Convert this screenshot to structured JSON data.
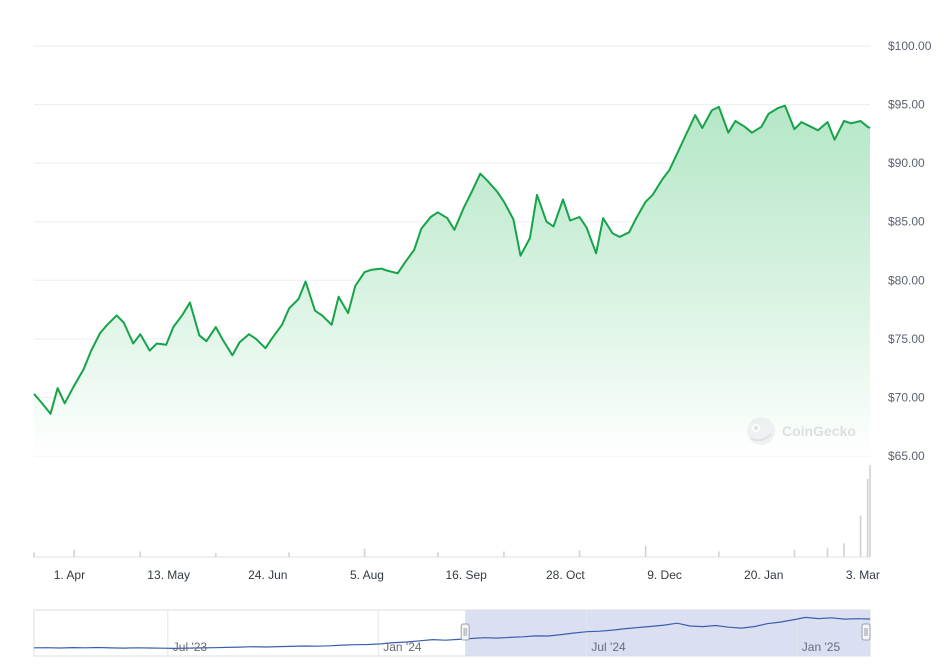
{
  "watermark": "CoinGecko",
  "colors": {
    "line": "#16a34a",
    "fill_top": "#a8e3bd",
    "grid": "#ebedf0",
    "volume": "#cfd3d8",
    "navigator_line": "#3b5fb0",
    "navigator_selection": "#d6dcef"
  },
  "chart_data": {
    "type": "area",
    "y_axis": {
      "ticks": [
        "$100.00",
        "$95.00",
        "$90.00",
        "$85.00",
        "$80.00",
        "$75.00",
        "$70.00",
        "$65.00"
      ],
      "tick_values": [
        100,
        95,
        90,
        85,
        80,
        75,
        70,
        65
      ],
      "range": [
        65,
        100
      ],
      "side": "right"
    },
    "x_axis": {
      "ticks": [
        "1. Apr",
        "13. May",
        "24. Jun",
        "5. Aug",
        "16. Sep",
        "28. Oct",
        "9. Dec",
        "20. Jan",
        "3. Mar"
      ],
      "tick_dates": [
        "2024-04-01",
        "2024-05-13",
        "2024-06-24",
        "2024-08-05",
        "2024-09-16",
        "2024-10-28",
        "2024-12-09",
        "2025-01-20",
        "2025-03-03"
      ]
    },
    "grid": true,
    "legend": "none",
    "series": [
      {
        "dates": [
          "2024-03-17",
          "2024-03-20",
          "2024-03-24",
          "2024-03-27",
          "2024-03-30",
          "2024-04-03",
          "2024-04-07",
          "2024-04-10",
          "2024-04-14",
          "2024-04-17",
          "2024-04-21",
          "2024-04-24",
          "2024-04-28",
          "2024-05-01",
          "2024-05-05",
          "2024-05-08",
          "2024-05-12",
          "2024-05-15",
          "2024-05-19",
          "2024-05-22",
          "2024-05-26",
          "2024-05-29",
          "2024-06-02",
          "2024-06-05",
          "2024-06-09",
          "2024-06-12",
          "2024-06-16",
          "2024-06-19",
          "2024-06-23",
          "2024-06-26",
          "2024-06-30",
          "2024-07-03",
          "2024-07-07",
          "2024-07-10",
          "2024-07-14",
          "2024-07-17",
          "2024-07-21",
          "2024-07-24",
          "2024-07-28",
          "2024-07-31",
          "2024-08-04",
          "2024-08-07",
          "2024-08-11",
          "2024-08-14",
          "2024-08-18",
          "2024-08-21",
          "2024-08-25",
          "2024-08-28",
          "2024-09-01",
          "2024-09-04",
          "2024-09-08",
          "2024-09-11",
          "2024-09-15",
          "2024-09-18",
          "2024-09-22",
          "2024-09-25",
          "2024-09-29",
          "2024-10-02",
          "2024-10-06",
          "2024-10-09",
          "2024-10-13",
          "2024-10-16",
          "2024-10-20",
          "2024-10-23",
          "2024-10-27",
          "2024-10-30",
          "2024-11-03",
          "2024-11-06",
          "2024-11-10",
          "2024-11-13",
          "2024-11-17",
          "2024-11-20",
          "2024-11-24",
          "2024-11-27",
          "2024-12-01",
          "2024-12-04",
          "2024-12-08",
          "2024-12-11",
          "2024-12-15",
          "2024-12-18",
          "2024-12-22",
          "2024-12-25",
          "2024-12-29",
          "2025-01-01",
          "2025-01-05",
          "2025-01-08",
          "2025-01-12",
          "2025-01-15",
          "2025-01-19",
          "2025-01-22",
          "2025-01-26",
          "2025-01-29",
          "2025-02-02",
          "2025-02-05",
          "2025-02-09",
          "2025-02-12",
          "2025-02-16",
          "2025-02-19",
          "2025-02-23",
          "2025-02-26",
          "2025-03-02",
          "2025-03-05",
          "2025-03-06"
        ],
        "values": [
          70.3,
          69.6,
          68.6,
          70.8,
          69.5,
          71.0,
          72.4,
          73.9,
          75.5,
          76.2,
          77.0,
          76.4,
          74.6,
          75.4,
          74.0,
          74.6,
          74.5,
          76.0,
          77.1,
          78.1,
          75.3,
          74.8,
          76.0,
          74.9,
          73.6,
          74.7,
          75.4,
          75.0,
          74.2,
          75.1,
          76.2,
          77.6,
          78.4,
          79.9,
          77.4,
          77.0,
          76.2,
          78.6,
          77.2,
          79.5,
          80.7,
          80.9,
          81.0,
          80.8,
          80.6,
          81.5,
          82.6,
          84.4,
          85.4,
          85.8,
          85.3,
          84.3,
          86.2,
          87.4,
          89.1,
          88.5,
          87.6,
          86.7,
          85.2,
          82.1,
          83.6,
          87.3,
          85.0,
          84.6,
          86.9,
          85.1,
          85.4,
          84.5,
          82.3,
          85.3,
          84.0,
          83.7,
          84.1,
          85.3,
          86.7,
          87.3,
          88.6,
          89.4,
          91.1,
          92.4,
          94.1,
          93.0,
          94.5,
          94.8,
          92.6,
          93.6,
          93.1,
          92.6,
          93.1,
          94.2,
          94.7,
          94.9,
          92.9,
          93.5,
          93.1,
          92.8,
          93.5,
          92.0,
          93.6,
          93.4,
          93.6,
          93.1,
          93.0
        ]
      }
    ],
    "volume": {
      "dates": [
        "2024-03-17",
        "2024-04-03",
        "2024-05-01",
        "2024-06-02",
        "2024-07-03",
        "2024-08-04",
        "2024-09-04",
        "2024-10-02",
        "2024-11-03",
        "2024-12-01",
        "2025-01-01",
        "2025-02-02",
        "2025-02-16",
        "2025-02-23",
        "2025-03-02",
        "2025-03-05",
        "2025-03-06"
      ],
      "values": [
        0.05,
        0.08,
        0.06,
        0.04,
        0.05,
        0.09,
        0.05,
        0.06,
        0.07,
        0.12,
        0.06,
        0.08,
        0.1,
        0.15,
        0.45,
        0.85,
        1.0
      ]
    },
    "navigator": {
      "labels": [
        "Jul '23",
        "Jan '24",
        "Jul '24",
        "Jan '25"
      ],
      "label_dates": [
        "2023-07-01",
        "2024-01-01",
        "2024-07-01",
        "2025-01-01"
      ],
      "start": "2023-03-06",
      "end": "2025-03-06",
      "selection": [
        "2024-03-17",
        "2025-03-06"
      ],
      "values": [
        64.2,
        64.3,
        64.0,
        64.4,
        64.2,
        64.5,
        64.1,
        63.9,
        64.2,
        64.0,
        63.8,
        63.6,
        63.9,
        64.1,
        64.3,
        64.6,
        64.9,
        65.3,
        65.0,
        65.4,
        65.6,
        66.0,
        65.8,
        66.2,
        66.9,
        67.3,
        67.5,
        68.1,
        69.4,
        70.0,
        71.2,
        72.4,
        71.8,
        72.6,
        73.5,
        74.3,
        73.9,
        74.6,
        75.2,
        76.1,
        76.0,
        77.4,
        79.0,
        80.3,
        80.8,
        81.9,
        83.4,
        84.5,
        85.6,
        86.9,
        88.8,
        86.0,
        85.4,
        86.5,
        84.8,
        83.9,
        85.4,
        88.3,
        89.9,
        92.1,
        94.6,
        93.4,
        94.2,
        92.9,
        93.3,
        93.0
      ]
    }
  }
}
